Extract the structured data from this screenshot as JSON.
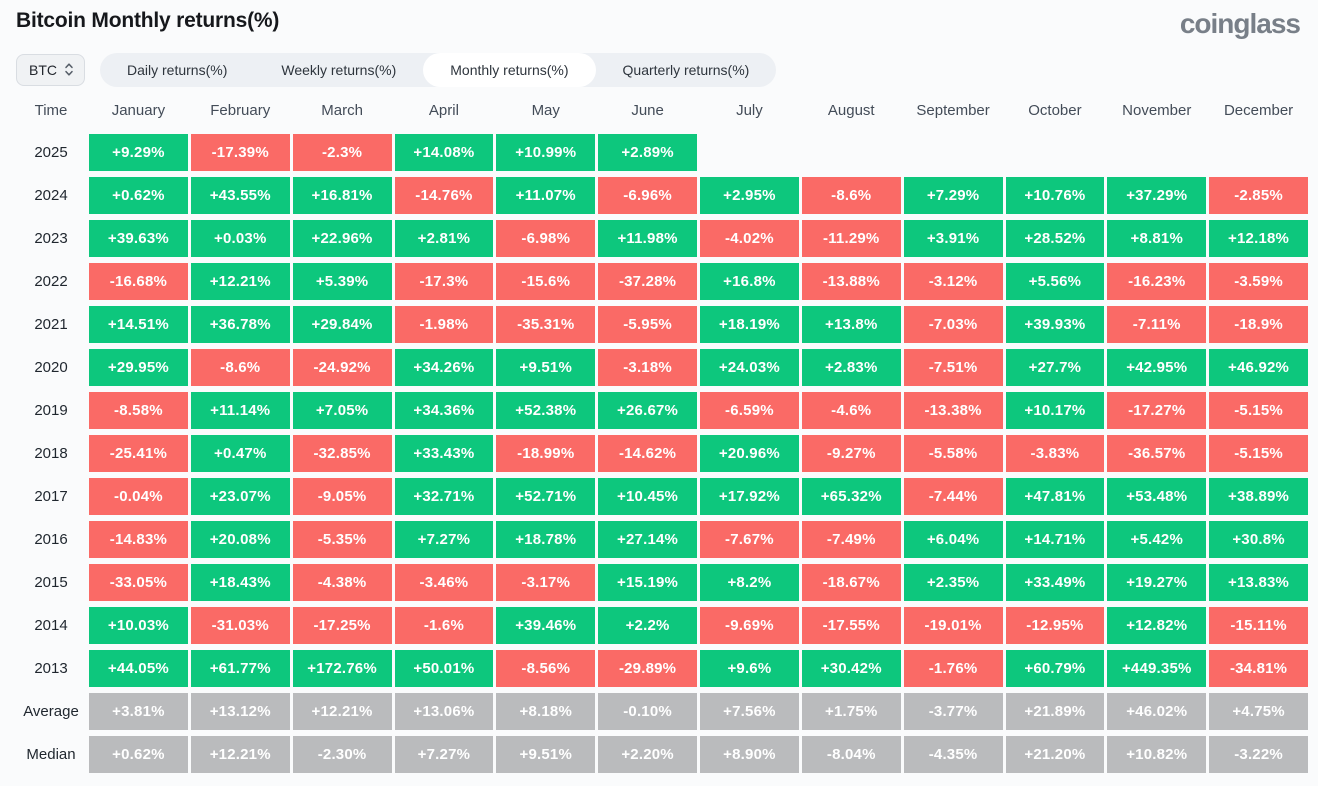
{
  "header": {
    "title": "Bitcoin Monthly returns(%)",
    "logo_text": "coinglass"
  },
  "controls": {
    "symbol": "BTC",
    "tabs": [
      {
        "label": "Daily returns(%)",
        "active": false
      },
      {
        "label": "Weekly returns(%)",
        "active": false
      },
      {
        "label": "Monthly returns(%)",
        "active": true
      },
      {
        "label": "Quarterly returns(%)",
        "active": false
      }
    ]
  },
  "colors": {
    "positive": "#0dc77d",
    "negative": "#fa6a66",
    "neutral": "#babbbd"
  },
  "table": {
    "time_header": "Time",
    "months": [
      "January",
      "February",
      "March",
      "April",
      "May",
      "June",
      "July",
      "August",
      "September",
      "October",
      "November",
      "December"
    ],
    "rows": [
      {
        "label": "2025",
        "type": "year",
        "values": [
          "+9.29%",
          "-17.39%",
          "-2.3%",
          "+14.08%",
          "+10.99%",
          "+2.89%",
          null,
          null,
          null,
          null,
          null,
          null
        ]
      },
      {
        "label": "2024",
        "type": "year",
        "values": [
          "+0.62%",
          "+43.55%",
          "+16.81%",
          "-14.76%",
          "+11.07%",
          "-6.96%",
          "+2.95%",
          "-8.6%",
          "+7.29%",
          "+10.76%",
          "+37.29%",
          "-2.85%"
        ]
      },
      {
        "label": "2023",
        "type": "year",
        "values": [
          "+39.63%",
          "+0.03%",
          "+22.96%",
          "+2.81%",
          "-6.98%",
          "+11.98%",
          "-4.02%",
          "-11.29%",
          "+3.91%",
          "+28.52%",
          "+8.81%",
          "+12.18%"
        ]
      },
      {
        "label": "2022",
        "type": "year",
        "values": [
          "-16.68%",
          "+12.21%",
          "+5.39%",
          "-17.3%",
          "-15.6%",
          "-37.28%",
          "+16.8%",
          "-13.88%",
          "-3.12%",
          "+5.56%",
          "-16.23%",
          "-3.59%"
        ]
      },
      {
        "label": "2021",
        "type": "year",
        "values": [
          "+14.51%",
          "+36.78%",
          "+29.84%",
          "-1.98%",
          "-35.31%",
          "-5.95%",
          "+18.19%",
          "+13.8%",
          "-7.03%",
          "+39.93%",
          "-7.11%",
          "-18.9%"
        ]
      },
      {
        "label": "2020",
        "type": "year",
        "values": [
          "+29.95%",
          "-8.6%",
          "-24.92%",
          "+34.26%",
          "+9.51%",
          "-3.18%",
          "+24.03%",
          "+2.83%",
          "-7.51%",
          "+27.7%",
          "+42.95%",
          "+46.92%"
        ]
      },
      {
        "label": "2019",
        "type": "year",
        "values": [
          "-8.58%",
          "+11.14%",
          "+7.05%",
          "+34.36%",
          "+52.38%",
          "+26.67%",
          "-6.59%",
          "-4.6%",
          "-13.38%",
          "+10.17%",
          "-17.27%",
          "-5.15%"
        ]
      },
      {
        "label": "2018",
        "type": "year",
        "values": [
          "-25.41%",
          "+0.47%",
          "-32.85%",
          "+33.43%",
          "-18.99%",
          "-14.62%",
          "+20.96%",
          "-9.27%",
          "-5.58%",
          "-3.83%",
          "-36.57%",
          "-5.15%"
        ]
      },
      {
        "label": "2017",
        "type": "year",
        "values": [
          "-0.04%",
          "+23.07%",
          "-9.05%",
          "+32.71%",
          "+52.71%",
          "+10.45%",
          "+17.92%",
          "+65.32%",
          "-7.44%",
          "+47.81%",
          "+53.48%",
          "+38.89%"
        ]
      },
      {
        "label": "2016",
        "type": "year",
        "values": [
          "-14.83%",
          "+20.08%",
          "-5.35%",
          "+7.27%",
          "+18.78%",
          "+27.14%",
          "-7.67%",
          "-7.49%",
          "+6.04%",
          "+14.71%",
          "+5.42%",
          "+30.8%"
        ]
      },
      {
        "label": "2015",
        "type": "year",
        "values": [
          "-33.05%",
          "+18.43%",
          "-4.38%",
          "-3.46%",
          "-3.17%",
          "+15.19%",
          "+8.2%",
          "-18.67%",
          "+2.35%",
          "+33.49%",
          "+19.27%",
          "+13.83%"
        ]
      },
      {
        "label": "2014",
        "type": "year",
        "values": [
          "+10.03%",
          "-31.03%",
          "-17.25%",
          "-1.6%",
          "+39.46%",
          "+2.2%",
          "-9.69%",
          "-17.55%",
          "-19.01%",
          "-12.95%",
          "+12.82%",
          "-15.11%"
        ]
      },
      {
        "label": "2013",
        "type": "year",
        "values": [
          "+44.05%",
          "+61.77%",
          "+172.76%",
          "+50.01%",
          "-8.56%",
          "-29.89%",
          "+9.6%",
          "+30.42%",
          "-1.76%",
          "+60.79%",
          "+449.35%",
          "-34.81%"
        ]
      },
      {
        "label": "Average",
        "type": "summary",
        "values": [
          "+3.81%",
          "+13.12%",
          "+12.21%",
          "+13.06%",
          "+8.18%",
          "-0.10%",
          "+7.56%",
          "+1.75%",
          "-3.77%",
          "+21.89%",
          "+46.02%",
          "+4.75%"
        ]
      },
      {
        "label": "Median",
        "type": "summary",
        "values": [
          "+0.62%",
          "+12.21%",
          "-2.30%",
          "+7.27%",
          "+9.51%",
          "+2.20%",
          "+8.90%",
          "-8.04%",
          "-4.35%",
          "+21.20%",
          "+10.82%",
          "-3.22%"
        ]
      }
    ]
  }
}
